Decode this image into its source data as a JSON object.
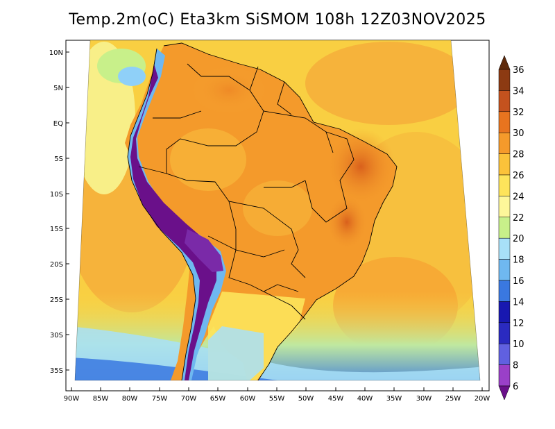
{
  "title": "Temp.2m(oC) Eta3km SiSMOM 108h 12Z03NOV2025",
  "colors": {
    "ocean_warm": "#f7b13a",
    "ocean_mid": "#fad544",
    "ocean_cool": "#f8ef88",
    "cold_water": "#7fc8f8",
    "land_warm": "#f49a2b",
    "land_hot": "#e06a1e",
    "andes": "#6a1f9f",
    "border": "#000000"
  },
  "map": {
    "lat_labels": [
      "10N",
      "5N",
      "EQ",
      "5S",
      "10S",
      "15S",
      "20S",
      "25S",
      "30S",
      "35S"
    ],
    "lon_labels": [
      "90W",
      "85W",
      "80W",
      "75W",
      "70W",
      "65W",
      "60W",
      "55W",
      "50W",
      "45W",
      "40W",
      "35W",
      "30W",
      "25W",
      "20W"
    ]
  },
  "colorbar": {
    "levels": [
      36,
      34,
      32,
      30,
      28,
      26,
      24,
      22,
      20,
      18,
      16,
      14,
      12,
      10,
      8,
      6
    ],
    "colors": [
      "#5e2a0c",
      "#8c3a12",
      "#c4521e",
      "#e8741f",
      "#f59a2b",
      "#fbc23a",
      "#fde45b",
      "#fdf79a",
      "#c8f08a",
      "#a8e0f8",
      "#6fb8f0",
      "#3a78e0",
      "#1818b0",
      "#2a2ac0",
      "#6060e0",
      "#9a40c8",
      "#6a108a"
    ]
  }
}
